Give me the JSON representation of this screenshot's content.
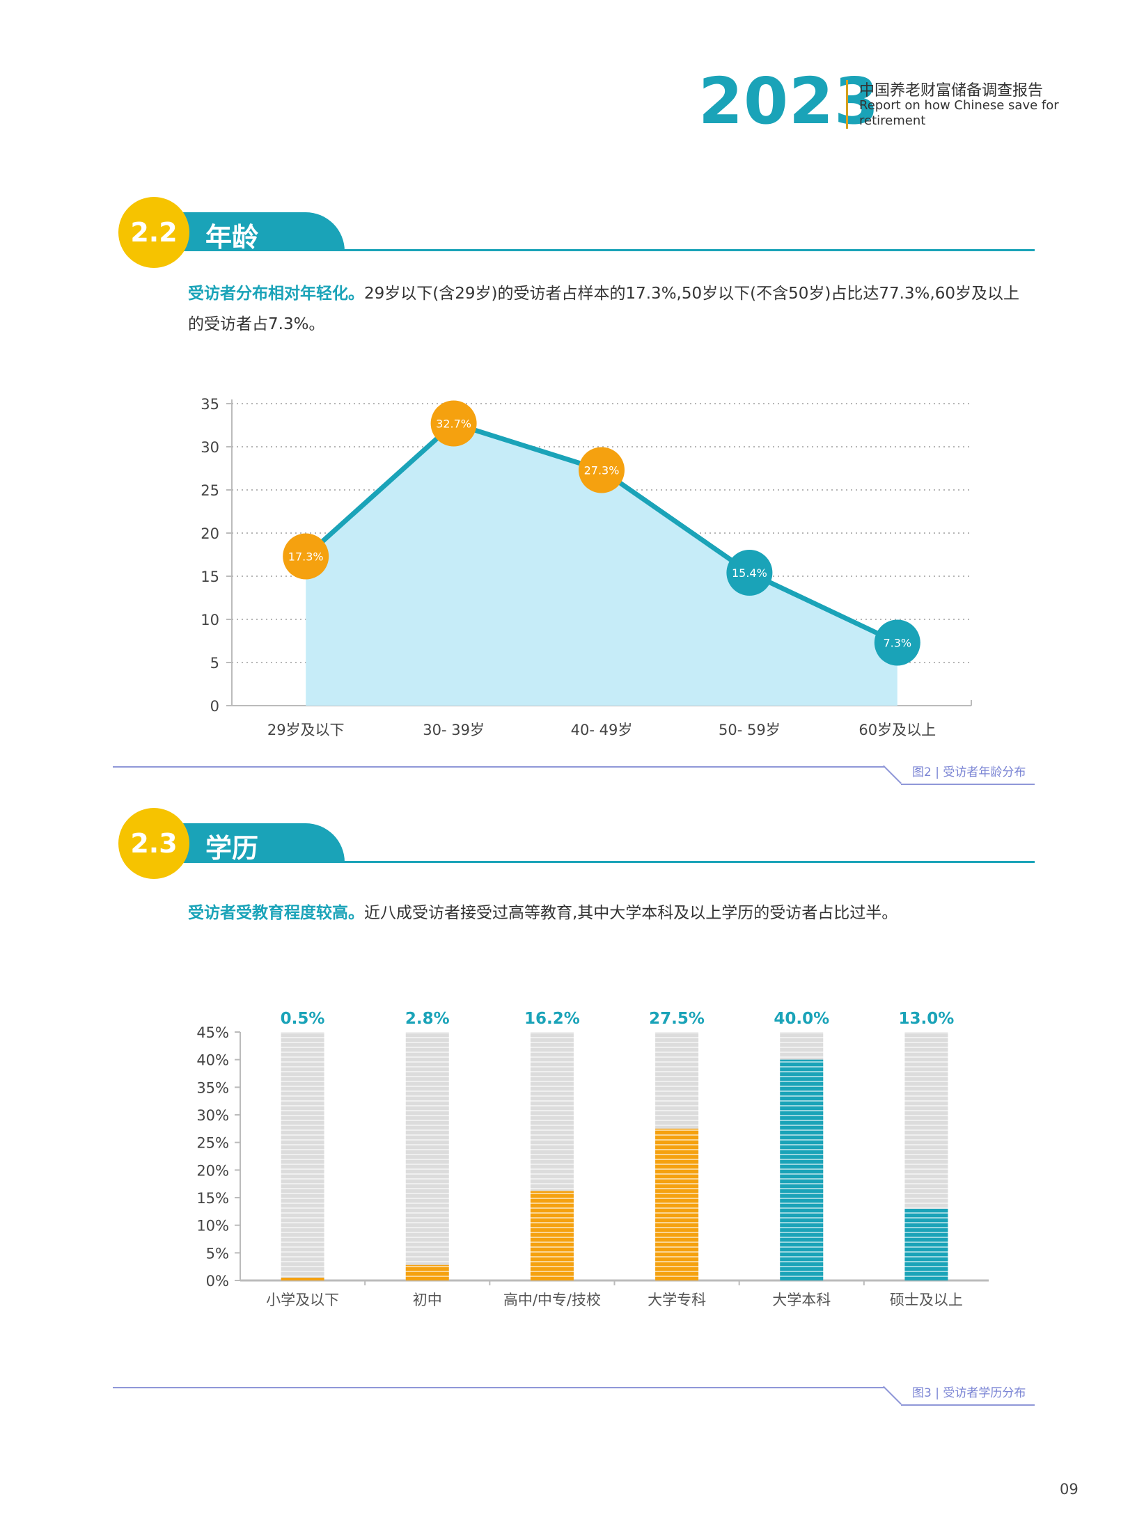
{
  "header": {
    "year": "2023",
    "title_cn": "中国养老财富储备调查报告",
    "title_en": "Report on how Chinese save for retirement"
  },
  "section_age": {
    "number": "2.2",
    "title": "年龄",
    "lead": "受访者分布相对年轻化。",
    "text": "29岁以下(含29岁)的受访者占样本的17.3%,50岁以下(不含50岁)占比达77.3%,60岁及以上的受访者占7.3%。",
    "caption_no": "图2",
    "caption_text": "受访者年龄分布"
  },
  "section_edu": {
    "number": "2.3",
    "title": "学历",
    "lead": "受访者受教育程度较高。",
    "text": "近八成受访者接受过高等教育,其中大学本科及以上学历的受访者占比过半。",
    "caption_no": "图3",
    "caption_text": "受访者学历分布"
  },
  "chart_data": [
    {
      "type": "area",
      "categories": [
        "29岁及以下",
        "30- 39岁",
        "40- 49岁",
        "50- 59岁",
        "60岁及以上"
      ],
      "values": [
        17.3,
        32.7,
        27.3,
        15.4,
        7.3
      ],
      "data_labels": [
        "17.3%",
        "32.7%",
        "27.3%",
        "15.4%",
        "7.3%"
      ],
      "y_ticks": [
        "0",
        "5",
        "10",
        "15",
        "20",
        "25",
        "30",
        "35"
      ],
      "ylim": [
        0,
        35
      ],
      "grid": true,
      "colors": {
        "line": "#1aa3b8",
        "fill": "#c6ecf8",
        "marker_orange": "#f5a10f",
        "marker_teal": "#1aa3b8"
      }
    },
    {
      "type": "bar",
      "categories": [
        "小学及以下",
        "初中",
        "高中/中专/技校",
        "大学专科",
        "大学本科",
        "硕士及以上"
      ],
      "values": [
        0.5,
        2.8,
        16.2,
        27.5,
        40.0,
        13.0
      ],
      "data_labels": [
        "0.5%",
        "2.8%",
        "16.2%",
        "27.5%",
        "40.0%",
        "13.0%"
      ],
      "y_ticks": [
        "0%",
        "5%",
        "10%",
        "15%",
        "20%",
        "25%",
        "30%",
        "35%",
        "40%",
        "45%"
      ],
      "ylim": [
        0,
        45
      ],
      "colors": [
        "#f5a10f",
        "#f5a10f",
        "#f5a10f",
        "#f5a10f",
        "#1aa3b8",
        "#1aa3b8"
      ],
      "background_color": "#dcdcdc",
      "label_color": "#1aa3b8"
    }
  ],
  "page_number": "09"
}
